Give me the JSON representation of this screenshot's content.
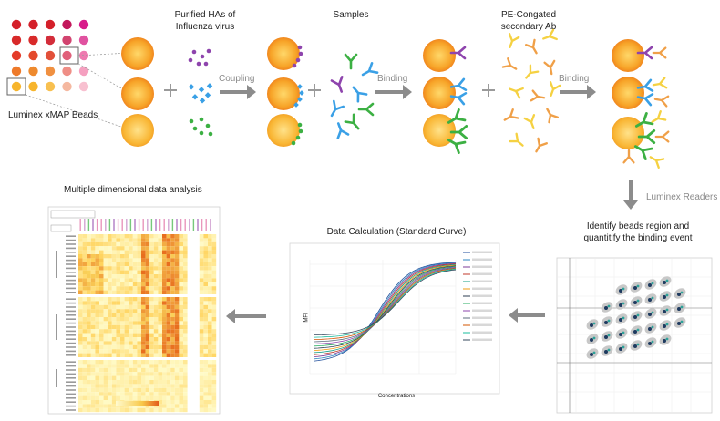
{
  "labels": {
    "beads": "Luminex xMAP Beads",
    "purified_line1": "Purified HAs of",
    "purified_line2": "Influenza virus",
    "samples": "Samples",
    "pe_line1": "PE-Congated",
    "pe_line2": "secondary Ab",
    "coupling": "Coupling",
    "binding1": "Binding",
    "binding2": "Binding",
    "readers": "Luminex Readers",
    "identify_line1": "Identify beads region and",
    "identify_line2": "quantitify the binding event",
    "calc": "Data Calculation (Standard Curve)",
    "multi": "Multiple dimensional data analysis",
    "curve_xlabel": "Concentrations",
    "curve_ylabel": "MFI"
  },
  "colors": {
    "bead_orange": "#f6a32a",
    "bead_center": "#ffd34a",
    "purple": "#8e44ad",
    "blue": "#3aa0e6",
    "green": "#3cb043",
    "yellow_ab": "#f5d142",
    "orange_ab": "#f0a048",
    "arrow_grey": "#8c8c8c",
    "heat_light": "#fff7b0",
    "heat_dark": "#e8741e"
  },
  "icons": {
    "plus": "plus-icon",
    "arrow": "right-arrow-icon",
    "down_arrow": "down-arrow-icon",
    "left_arrow": "left-arrow-icon"
  }
}
